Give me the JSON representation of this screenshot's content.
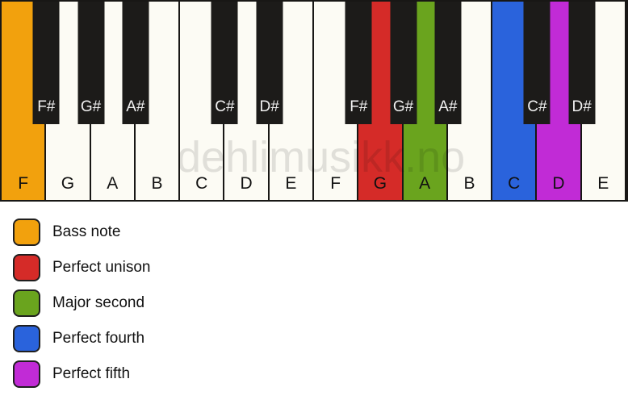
{
  "watermark": "dehlimusikk.no",
  "colors": {
    "bass": "#F2A10D",
    "unison": "#D52B28",
    "second": "#6AA41E",
    "fourth": "#2A63DC",
    "fifth": "#C12BD6",
    "black_key": "#1C1B19",
    "white_key": "#FCFBF4",
    "outline": "#181715"
  },
  "keyboard": {
    "white_keys": [
      {
        "label": "F",
        "fill": "#F2A10D",
        "highlight": "bass"
      },
      {
        "label": "G",
        "fill": null,
        "highlight": null
      },
      {
        "label": "A",
        "fill": null,
        "highlight": null
      },
      {
        "label": "B",
        "fill": null,
        "highlight": null
      },
      {
        "label": "C",
        "fill": null,
        "highlight": null
      },
      {
        "label": "D",
        "fill": null,
        "highlight": null
      },
      {
        "label": "E",
        "fill": null,
        "highlight": null
      },
      {
        "label": "F",
        "fill": null,
        "highlight": null
      },
      {
        "label": "G",
        "fill": "#D52B28",
        "highlight": "unison"
      },
      {
        "label": "A",
        "fill": "#6AA41E",
        "highlight": "second"
      },
      {
        "label": "B",
        "fill": null,
        "highlight": null
      },
      {
        "label": "C",
        "fill": "#2A63DC",
        "highlight": "fourth"
      },
      {
        "label": "D",
        "fill": "#C12BD6",
        "highlight": "fifth"
      },
      {
        "label": "E",
        "fill": null,
        "highlight": null
      }
    ],
    "black_keys": [
      {
        "label": "F#",
        "boundary_index": 1
      },
      {
        "label": "G#",
        "boundary_index": 2
      },
      {
        "label": "A#",
        "boundary_index": 3
      },
      {
        "label": "C#",
        "boundary_index": 5
      },
      {
        "label": "D#",
        "boundary_index": 6
      },
      {
        "label": "F#",
        "boundary_index": 8
      },
      {
        "label": "G#",
        "boundary_index": 9
      },
      {
        "label": "A#",
        "boundary_index": 10
      },
      {
        "label": "C#",
        "boundary_index": 12
      },
      {
        "label": "D#",
        "boundary_index": 13
      }
    ]
  },
  "legend": {
    "items": [
      {
        "label": "Bass note",
        "color": "#F2A10D"
      },
      {
        "label": "Perfect unison",
        "color": "#D52B28"
      },
      {
        "label": "Major second",
        "color": "#6AA41E"
      },
      {
        "label": "Perfect fourth",
        "color": "#2A63DC"
      },
      {
        "label": "Perfect fifth",
        "color": "#C12BD6"
      }
    ]
  }
}
